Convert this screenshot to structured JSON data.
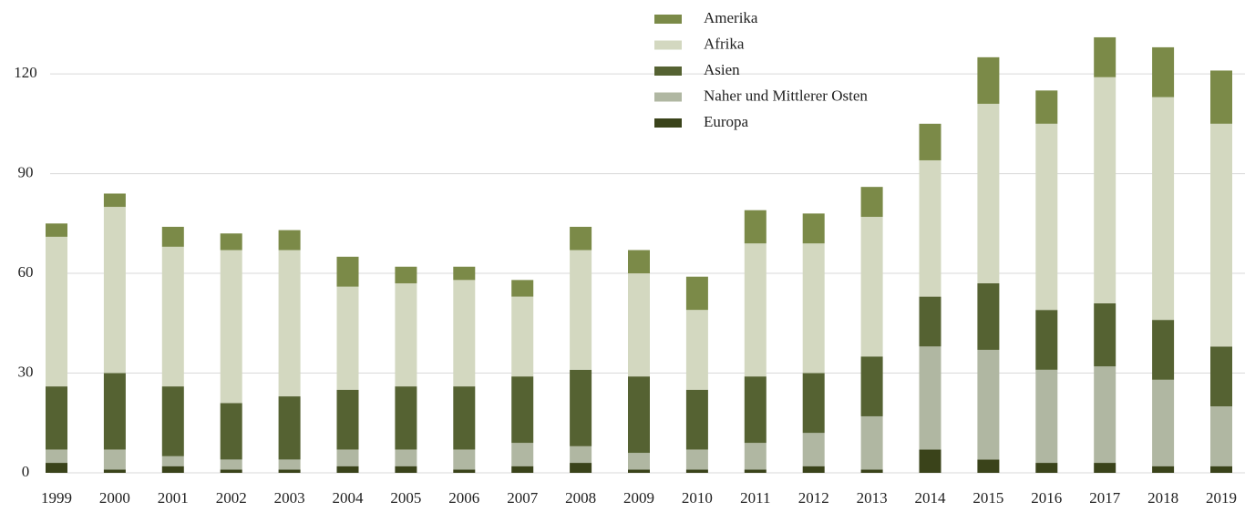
{
  "chart_data": {
    "type": "stacked_bar",
    "categories": [
      "1999",
      "2000",
      "2001",
      "2002",
      "2003",
      "2004",
      "2005",
      "2006",
      "2007",
      "2008",
      "2009",
      "2010",
      "2011",
      "2012",
      "2013",
      "2014",
      "2015",
      "2016",
      "2017",
      "2018",
      "2019"
    ],
    "series": [
      {
        "name": "Europa",
        "color": "#3a431a",
        "values": [
          3,
          1,
          2,
          1,
          1,
          2,
          2,
          1,
          2,
          3,
          1,
          1,
          1,
          2,
          1,
          7,
          4,
          3,
          3,
          2,
          2
        ]
      },
      {
        "name": "Naher und Mittlerer Osten",
        "color": "#b0b7a2",
        "values": [
          4,
          6,
          3,
          3,
          3,
          5,
          5,
          6,
          7,
          5,
          5,
          6,
          8,
          10,
          16,
          31,
          33,
          28,
          29,
          26,
          18
        ]
      },
      {
        "name": "Asien",
        "color": "#556232",
        "values": [
          19,
          23,
          21,
          17,
          19,
          18,
          19,
          19,
          20,
          23,
          23,
          18,
          20,
          18,
          18,
          15,
          20,
          18,
          19,
          18,
          18
        ]
      },
      {
        "name": "Afrika",
        "color": "#d3d8c0",
        "values": [
          45,
          50,
          42,
          46,
          44,
          31,
          31,
          32,
          24,
          36,
          31,
          24,
          40,
          39,
          42,
          41,
          54,
          56,
          68,
          67,
          67
        ]
      },
      {
        "name": "Amerika",
        "color": "#7b8a48",
        "values": [
          4,
          4,
          6,
          5,
          6,
          9,
          5,
          4,
          5,
          7,
          7,
          10,
          10,
          9,
          9,
          11,
          14,
          10,
          12,
          15,
          16
        ]
      }
    ],
    "ylim": [
      0,
      134
    ],
    "yticks": [
      0,
      30,
      60,
      90,
      120
    ],
    "grid": true,
    "legend": "top"
  }
}
